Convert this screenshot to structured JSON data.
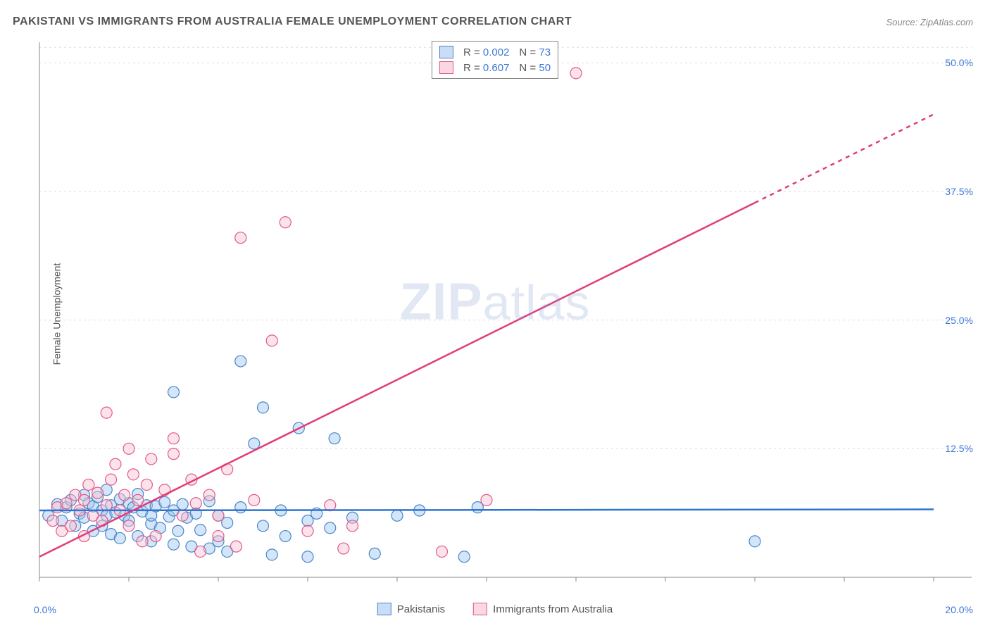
{
  "title": "PAKISTANI VS IMMIGRANTS FROM AUSTRALIA FEMALE UNEMPLOYMENT CORRELATION CHART",
  "source": "Source: ZipAtlas.com",
  "ylabel": "Female Unemployment",
  "watermark_bold": "ZIP",
  "watermark_light": "atlas",
  "stats": {
    "series1": {
      "r_label": "R =",
      "r_value": "0.002",
      "n_label": "N =",
      "n_value": "73"
    },
    "series2": {
      "r_label": "R =",
      "r_value": "0.607",
      "n_label": "N =",
      "n_value": "50"
    }
  },
  "bottom_legend": {
    "series1": "Pakistanis",
    "series2": "Immigrants from Australia"
  },
  "axes": {
    "xlim": [
      0,
      20
    ],
    "ylim": [
      0,
      52
    ],
    "x_min_label": "0.0%",
    "x_max_label": "20.0%",
    "y_ticks": [
      {
        "value": 12.5,
        "label": "12.5%"
      },
      {
        "value": 25.0,
        "label": "25.0%"
      },
      {
        "value": 37.5,
        "label": "37.5%"
      },
      {
        "value": 50.0,
        "label": "50.0%"
      }
    ],
    "x_tick_values": [
      0,
      2,
      4,
      6,
      8,
      10,
      12,
      14,
      16,
      18,
      20
    ],
    "grid_color": "#dddddd",
    "axis_color": "#888888",
    "background": "#ffffff"
  },
  "chart": {
    "type": "scatter",
    "marker_radius": 8,
    "marker_opacity": 0.45,
    "series": [
      {
        "name": "Pakistanis",
        "fill_color": "#9ec5f0",
        "stroke_color": "#4a86c7",
        "trend": {
          "slope": 0.005,
          "intercept": 6.5,
          "color": "#2f74d0",
          "width": 2.5,
          "x0": 0,
          "x_solid_end": 20,
          "x_dash_end": 20
        },
        "points": [
          [
            0.2,
            6.0
          ],
          [
            0.4,
            7.1
          ],
          [
            0.5,
            5.5
          ],
          [
            0.6,
            6.8
          ],
          [
            0.7,
            7.5
          ],
          [
            0.8,
            5.0
          ],
          [
            0.9,
            6.2
          ],
          [
            1.0,
            8.0
          ],
          [
            1.0,
            5.8
          ],
          [
            1.1,
            7.2
          ],
          [
            1.2,
            6.9
          ],
          [
            1.2,
            4.5
          ],
          [
            1.3,
            7.8
          ],
          [
            1.4,
            6.5
          ],
          [
            1.4,
            5.0
          ],
          [
            1.5,
            8.5
          ],
          [
            1.5,
            6.0
          ],
          [
            1.6,
            7.0
          ],
          [
            1.6,
            4.2
          ],
          [
            1.7,
            6.3
          ],
          [
            1.8,
            7.6
          ],
          [
            1.8,
            3.8
          ],
          [
            1.9,
            6.0
          ],
          [
            2.0,
            7.2
          ],
          [
            2.0,
            5.5
          ],
          [
            2.1,
            6.8
          ],
          [
            2.2,
            4.0
          ],
          [
            2.2,
            8.1
          ],
          [
            2.3,
            6.4
          ],
          [
            2.4,
            7.0
          ],
          [
            2.5,
            5.2
          ],
          [
            2.5,
            3.5
          ],
          [
            2.6,
            6.9
          ],
          [
            2.7,
            4.8
          ],
          [
            2.8,
            7.3
          ],
          [
            2.9,
            5.9
          ],
          [
            3.0,
            6.5
          ],
          [
            3.0,
            3.2
          ],
          [
            3.1,
            4.5
          ],
          [
            3.2,
            7.1
          ],
          [
            3.3,
            5.8
          ],
          [
            3.4,
            3.0
          ],
          [
            3.5,
            6.2
          ],
          [
            3.6,
            4.6
          ],
          [
            3.8,
            7.4
          ],
          [
            3.8,
            2.8
          ],
          [
            4.0,
            6.0
          ],
          [
            4.0,
            3.5
          ],
          [
            4.2,
            5.3
          ],
          [
            4.2,
            2.5
          ],
          [
            4.5,
            6.8
          ],
          [
            4.5,
            21.0
          ],
          [
            4.8,
            13.0
          ],
          [
            5.0,
            5.0
          ],
          [
            5.0,
            16.5
          ],
          [
            5.2,
            2.2
          ],
          [
            5.4,
            6.5
          ],
          [
            5.5,
            4.0
          ],
          [
            5.8,
            14.5
          ],
          [
            6.0,
            5.5
          ],
          [
            6.0,
            2.0
          ],
          [
            6.2,
            6.2
          ],
          [
            6.5,
            4.8
          ],
          [
            6.6,
            13.5
          ],
          [
            7.0,
            5.8
          ],
          [
            7.5,
            2.3
          ],
          [
            8.0,
            6.0
          ],
          [
            8.5,
            6.5
          ],
          [
            9.5,
            2.0
          ],
          [
            9.8,
            6.8
          ],
          [
            16.0,
            3.5
          ],
          [
            3.0,
            18.0
          ],
          [
            2.5,
            6.0
          ]
        ]
      },
      {
        "name": "Immigrants from Australia",
        "fill_color": "#f8c0d2",
        "stroke_color": "#e05a8a",
        "trend": {
          "slope": 2.15,
          "intercept": 2.0,
          "color": "#e23b7a",
          "width": 2.5,
          "x0": 0,
          "x_solid_end": 16,
          "x_dash_end": 20
        },
        "points": [
          [
            0.3,
            5.5
          ],
          [
            0.4,
            6.8
          ],
          [
            0.5,
            4.5
          ],
          [
            0.6,
            7.2
          ],
          [
            0.7,
            5.0
          ],
          [
            0.8,
            8.0
          ],
          [
            0.9,
            6.5
          ],
          [
            1.0,
            7.5
          ],
          [
            1.0,
            4.0
          ],
          [
            1.1,
            9.0
          ],
          [
            1.2,
            6.0
          ],
          [
            1.3,
            8.2
          ],
          [
            1.4,
            5.5
          ],
          [
            1.5,
            16.0
          ],
          [
            1.5,
            7.0
          ],
          [
            1.6,
            9.5
          ],
          [
            1.7,
            11.0
          ],
          [
            1.8,
            6.5
          ],
          [
            1.9,
            8.0
          ],
          [
            2.0,
            12.5
          ],
          [
            2.0,
            5.0
          ],
          [
            2.1,
            10.0
          ],
          [
            2.2,
            7.5
          ],
          [
            2.3,
            3.5
          ],
          [
            2.4,
            9.0
          ],
          [
            2.5,
            11.5
          ],
          [
            2.6,
            4.0
          ],
          [
            2.8,
            8.5
          ],
          [
            3.0,
            13.5
          ],
          [
            3.0,
            12.0
          ],
          [
            3.2,
            6.0
          ],
          [
            3.4,
            9.5
          ],
          [
            3.5,
            7.2
          ],
          [
            3.6,
            2.5
          ],
          [
            3.8,
            8.0
          ],
          [
            4.0,
            4.0
          ],
          [
            4.2,
            10.5
          ],
          [
            4.4,
            3.0
          ],
          [
            4.5,
            33.0
          ],
          [
            4.8,
            7.5
          ],
          [
            5.2,
            23.0
          ],
          [
            5.5,
            34.5
          ],
          [
            6.0,
            4.5
          ],
          [
            6.5,
            7.0
          ],
          [
            6.8,
            2.8
          ],
          [
            7.0,
            5.0
          ],
          [
            9.0,
            2.5
          ],
          [
            10.0,
            7.5
          ],
          [
            12.0,
            49.0
          ],
          [
            4.0,
            6.0
          ]
        ]
      }
    ]
  }
}
